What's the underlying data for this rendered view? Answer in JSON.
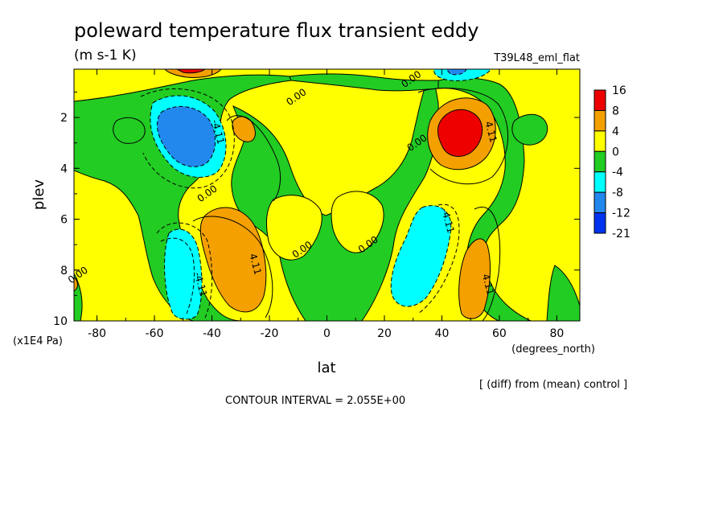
{
  "header": {
    "title": "poleward temperature flux transient eddy",
    "units": "(m s-1 K)",
    "experiment": "T39L48_eml_flat"
  },
  "footer": {
    "note": "[ (diff) from (mean) control ]",
    "contour_interval": "CONTOUR INTERVAL = 2.055E+00"
  },
  "chart_data": {
    "type": "filled-contour",
    "xlabel": "lat",
    "xunits": "(degrees_north)",
    "ylabel": "plev",
    "yunits": "(x1E4 Pa)",
    "xlim": [
      -88,
      88
    ],
    "ylim": [
      0.1,
      10
    ],
    "y_inverted": true,
    "x_ticks": [
      -80,
      -60,
      -40,
      -20,
      0,
      20,
      40,
      60,
      80
    ],
    "y_ticks": [
      2,
      4,
      6,
      8,
      10
    ],
    "contour_interval": 2.055,
    "colorbar": {
      "labels": [
        "16",
        "8",
        "4",
        "0",
        "-4",
        "-8",
        "-12",
        "-21"
      ],
      "colors": [
        "#ee0000",
        "#f4a000",
        "#ffff00",
        "#22cc22",
        "#00ffff",
        "#2288ee",
        "#0033ee"
      ]
    },
    "contour_labels": [
      {
        "text": "0.00",
        "lat": -10,
        "plev": 1.3
      },
      {
        "text": "0.00",
        "lat": 30,
        "plev": 0.6
      },
      {
        "text": "0.00",
        "lat": -41,
        "plev": 5.1
      },
      {
        "text": "0.00",
        "lat": -86,
        "plev": 8.3
      },
      {
        "text": "0.00",
        "lat": -8,
        "plev": 7.3
      },
      {
        "text": "0.00",
        "lat": 15,
        "plev": 7.1
      },
      {
        "text": "0.00",
        "lat": 32,
        "plev": 3.1
      },
      {
        "text": "-4.11",
        "lat": -39,
        "plev": 2.6
      },
      {
        "text": "4.11",
        "lat": -26,
        "plev": 7.8
      },
      {
        "text": "-4.11",
        "lat": -45,
        "plev": 8.6
      },
      {
        "text": "-4.11",
        "lat": 41,
        "plev": 6.1
      },
      {
        "text": "4.11",
        "lat": 56,
        "plev": 2.6
      },
      {
        "text": "4.11",
        "lat": 55,
        "plev": 8.6
      }
    ],
    "features": [
      {
        "sign": "negative",
        "peak": -21,
        "lat": -48,
        "plev": 2.3
      },
      {
        "sign": "positive",
        "peak": 16,
        "lat": 46,
        "plev": 2.4
      },
      {
        "sign": "positive",
        "peak": 8,
        "lat": -37,
        "plev": 7.5
      },
      {
        "sign": "negative",
        "peak": -8,
        "lat": -50,
        "plev": 8.8
      },
      {
        "sign": "negative",
        "peak": -8,
        "lat": 34,
        "plev": 7.5
      },
      {
        "sign": "positive",
        "peak": 8,
        "lat": 51,
        "plev": 8.8
      },
      {
        "sign": "positive",
        "peak": 4,
        "lat": -29,
        "plev": 2.6
      },
      {
        "sign": "positive",
        "peak": 8,
        "lat": -48,
        "plev": 0.1
      },
      {
        "sign": "negative",
        "peak": -12,
        "lat": 41,
        "plev": 0.1
      }
    ]
  }
}
